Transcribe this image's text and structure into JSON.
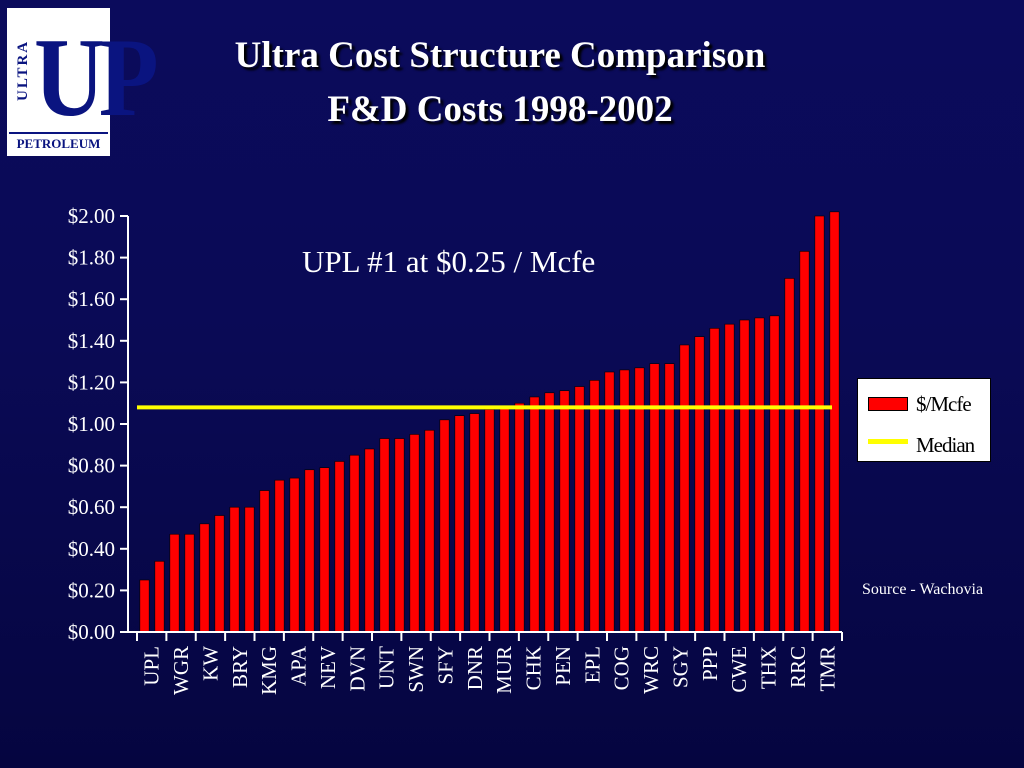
{
  "logo": {
    "ultra": "ULTRA",
    "up": "UP",
    "petroleum": "PETROLEUM"
  },
  "colors": {
    "bar": "#ff0000",
    "median": "#ffff00",
    "text": "#ffffff",
    "background": "#0a0a55"
  },
  "chart_data": {
    "type": "bar",
    "title": "Ultra Cost Structure Comparison",
    "subtitle": "F&D Costs 1998-2002",
    "annotation": "UPL #1 at $0.25 / Mcfe",
    "source": "Source - Wachovia",
    "ylim": [
      0,
      2.0
    ],
    "yticks": [
      "$0.00",
      "$0.20",
      "$0.40",
      "$0.60",
      "$0.80",
      "$1.00",
      "$1.20",
      "$1.40",
      "$1.60",
      "$1.80",
      "$2.00"
    ],
    "ytick_values": [
      0,
      0.2,
      0.4,
      0.6,
      0.8,
      1.0,
      1.2,
      1.4,
      1.6,
      1.8,
      2.0
    ],
    "categories": [
      "UPL",
      "WGR",
      "KW",
      "BRY",
      "KMG",
      "APA",
      "NEV",
      "DVN",
      "UNT",
      "SWN",
      "SFY",
      "DNR",
      "MUR",
      "CHK",
      "PEN",
      "EPL",
      "COG",
      "WRC",
      "SGY",
      "PPP",
      "CWE",
      "THX",
      "RRC",
      "TMR"
    ],
    "bars": [
      0.25,
      0.34,
      0.47,
      0.47,
      0.52,
      0.56,
      0.6,
      0.6,
      0.68,
      0.73,
      0.74,
      0.78,
      0.79,
      0.82,
      0.85,
      0.88,
      0.93,
      0.93,
      0.95,
      0.97,
      1.02,
      1.04,
      1.05,
      1.07,
      1.08,
      1.1,
      1.13,
      1.15,
      1.16,
      1.18,
      1.21,
      1.25,
      1.26,
      1.27,
      1.29,
      1.29,
      1.38,
      1.42,
      1.46,
      1.48,
      1.5,
      1.51,
      1.52,
      1.7,
      1.83,
      2.0,
      2.02
    ],
    "median": 1.08,
    "series": [
      {
        "name": "$/Mcfe",
        "type": "bar"
      },
      {
        "name": "Median",
        "type": "line"
      }
    ],
    "legend_position": "right",
    "grid": false
  }
}
